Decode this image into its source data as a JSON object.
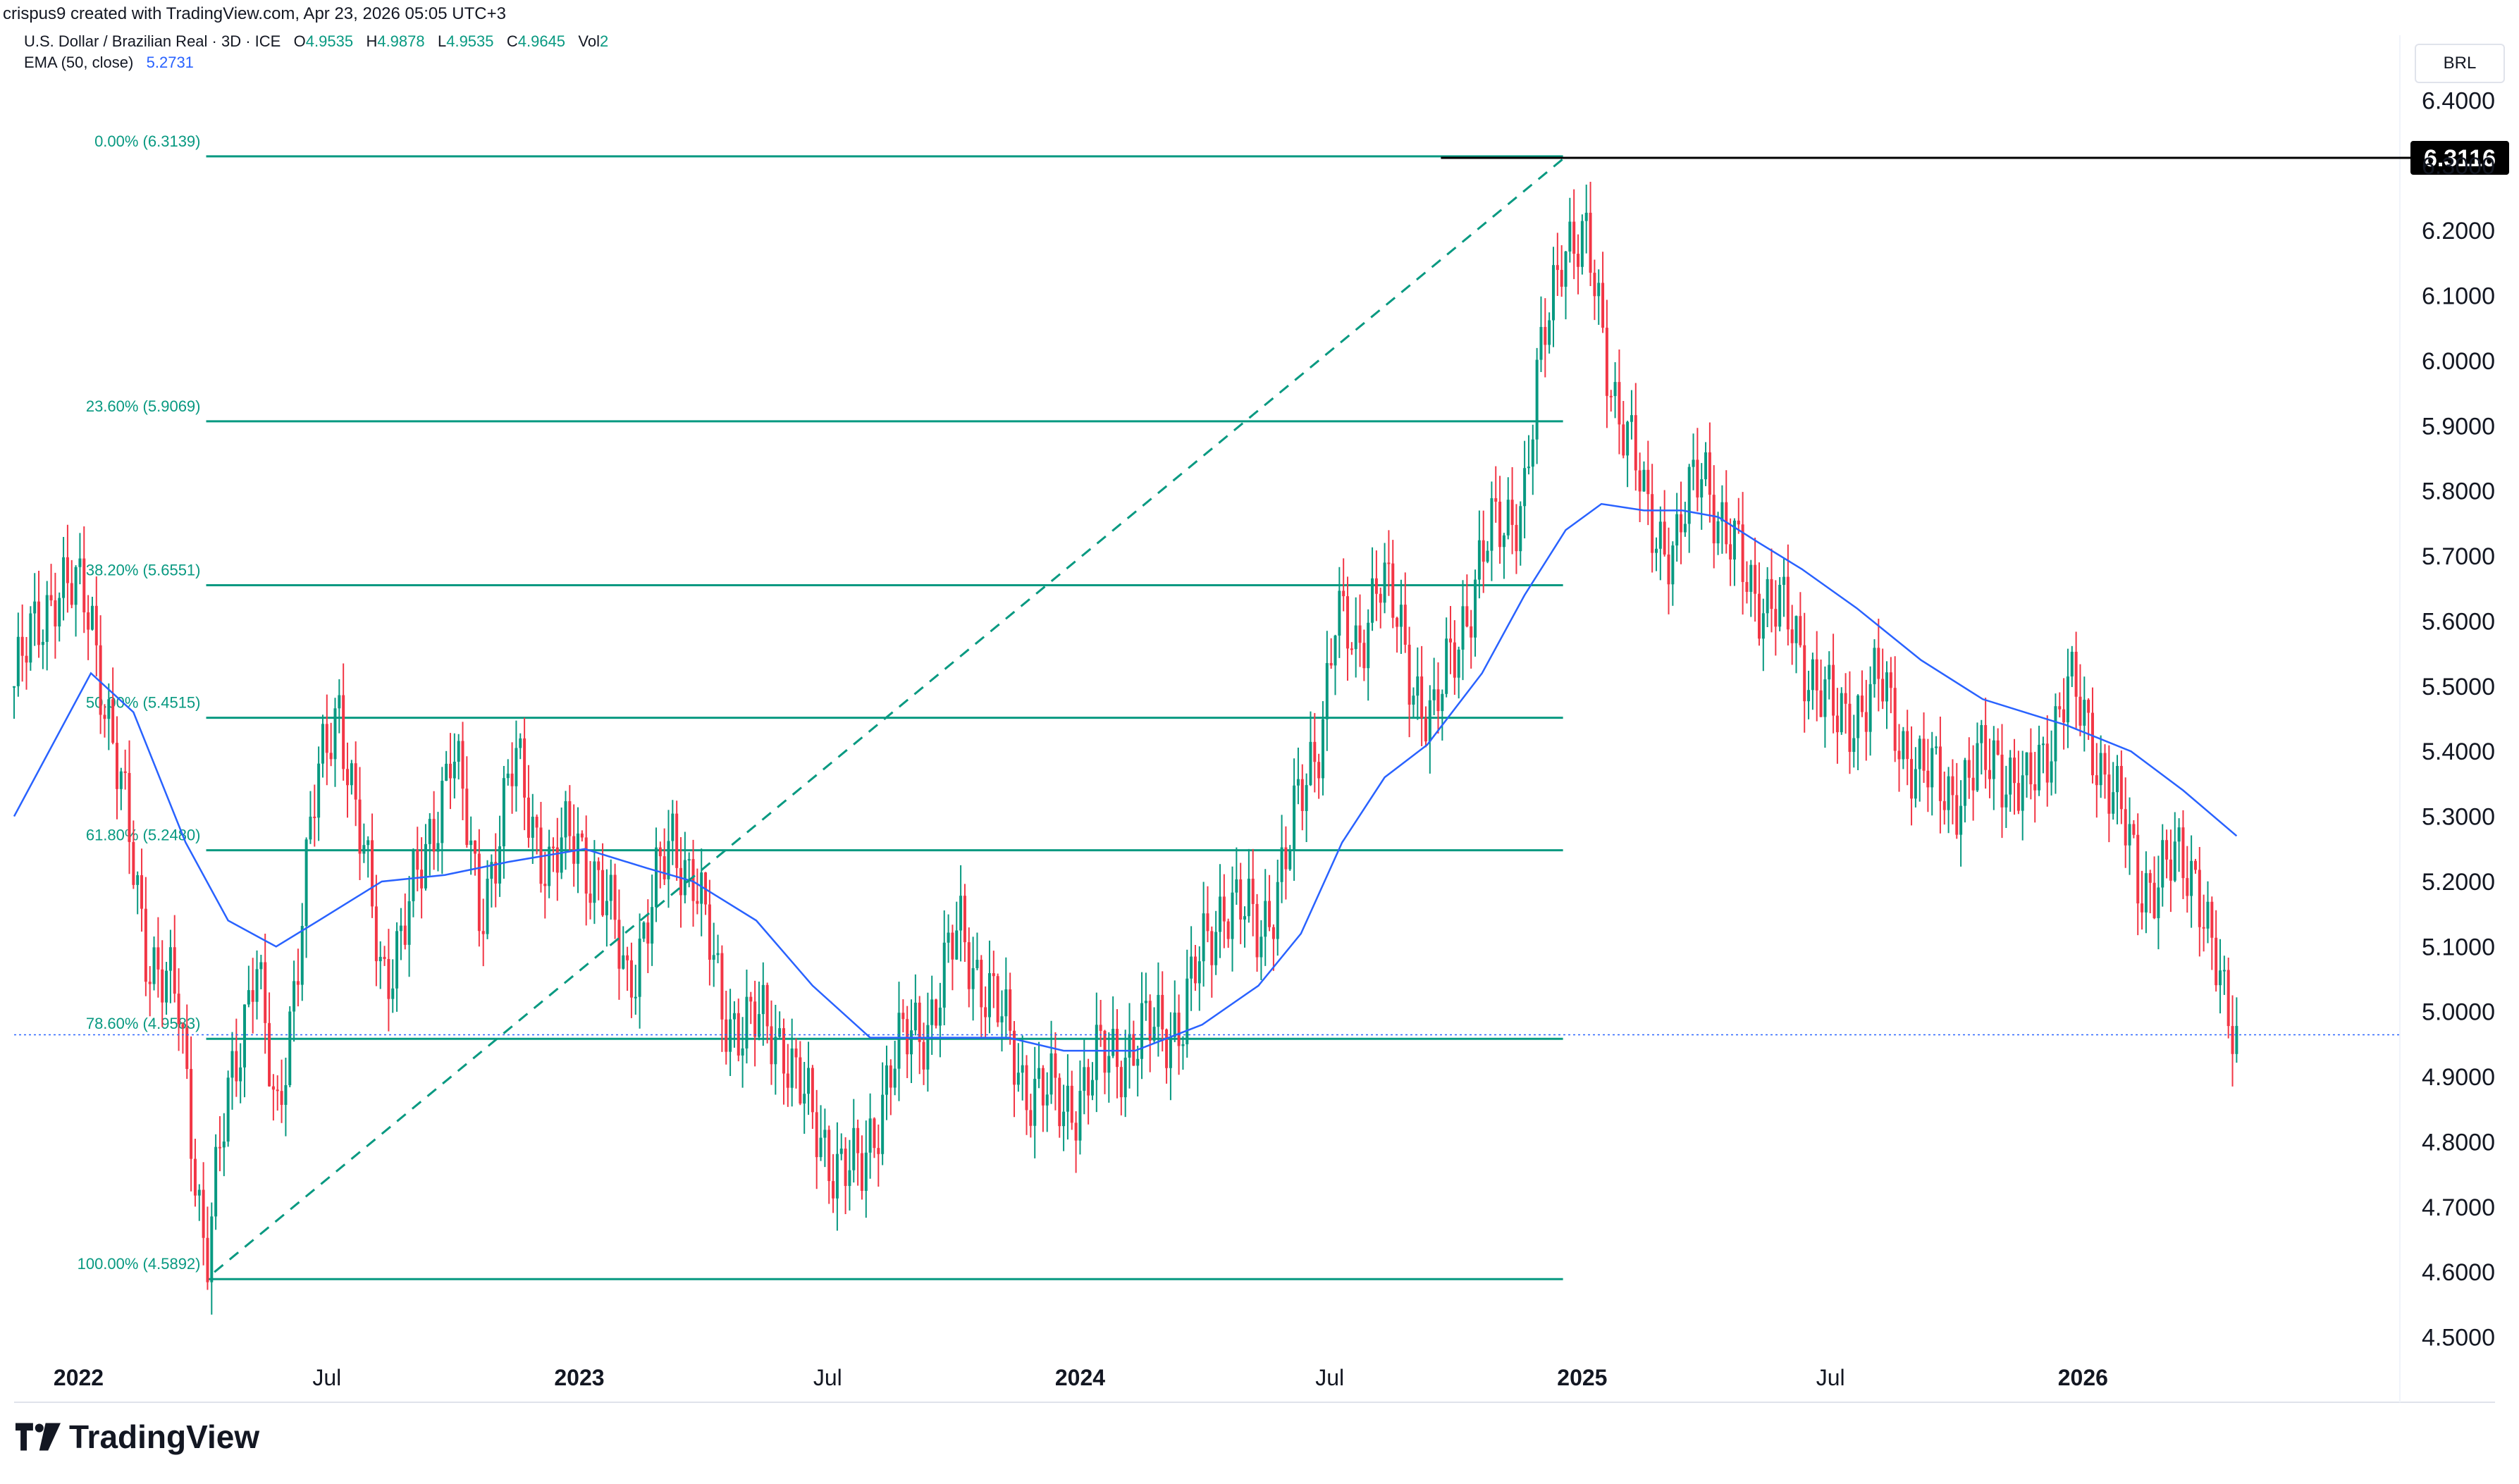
{
  "credit": "crispus9 created with TradingView.com, Apr 23, 2026 05:05 UTC+3",
  "legend": {
    "symbol": "U.S. Dollar / Brazilian Real · 3D · ICE",
    "o_key": "O",
    "o": "4.9535",
    "h_key": "H",
    "h": "4.9878",
    "l_key": "L",
    "l": "4.9535",
    "c_key": "C",
    "c": "4.9645",
    "vol": "Vol",
    "vol_value": "2",
    "ema_label": "EMA (50, close)",
    "ema_value": "5.2731"
  },
  "currency": "BRL",
  "brand": "TradingView",
  "colors": {
    "up": "#089981",
    "down": "#f23645",
    "ema": "#2962ff",
    "fib": "#089981",
    "last_label_bg": "#000000"
  },
  "chart_data": {
    "type": "candlestick",
    "y_axis": {
      "min": 4.4,
      "max": 6.5,
      "ticks": [
        "6.4000",
        "6.3000",
        "6.2000",
        "6.1000",
        "6.0000",
        "5.9000",
        "5.8000",
        "5.7000",
        "5.6000",
        "5.5000",
        "5.4000",
        "5.3000",
        "5.2000",
        "5.1000",
        "5.0000",
        "4.9000",
        "4.8000",
        "4.7000",
        "4.6000",
        "4.5000"
      ]
    },
    "x_axis": {
      "labels": [
        {
          "text": "2022",
          "bold": true,
          "date": "2022-01-01"
        },
        {
          "text": "Jul",
          "bold": false,
          "date": "2022-07-01"
        },
        {
          "text": "2023",
          "bold": true,
          "date": "2023-01-01"
        },
        {
          "text": "Jul",
          "bold": false,
          "date": "2023-07-01"
        },
        {
          "text": "2024",
          "bold": true,
          "date": "2024-01-01"
        },
        {
          "text": "Jul",
          "bold": false,
          "date": "2024-07-01"
        },
        {
          "text": "2025",
          "bold": true,
          "date": "2025-01-01"
        },
        {
          "text": "Jul",
          "bold": false,
          "date": "2025-07-01"
        },
        {
          "text": "2026",
          "bold": true,
          "date": "2026-01-01"
        }
      ],
      "start": "2021-11-15",
      "end": "2026-08-20"
    },
    "last_price": {
      "value": 4.9645,
      "label": ""
    },
    "high_marker": {
      "value": 6.3116,
      "label": "6.3116"
    },
    "fibonacci": {
      "start_date": "2022-04-04",
      "end_date": "2024-12-18",
      "levels": [
        {
          "label": "0.00% (6.3139)",
          "value": 6.3139
        },
        {
          "label": "23.60% (5.9069)",
          "value": 5.9069
        },
        {
          "label": "38.20% (5.6551)",
          "value": 5.6551
        },
        {
          "label": "50.00% (5.4515)",
          "value": 5.4515
        },
        {
          "label": "61.80% (5.2480)",
          "value": 5.248
        },
        {
          "label": "78.60% (4.9583)",
          "value": 4.9583
        },
        {
          "label": "100.00% (4.5892)",
          "value": 4.5892
        }
      ],
      "trend_from": {
        "date": "2022-04-10",
        "value": 4.6
      },
      "trend_to": {
        "date": "2024-12-18",
        "value": 6.31
      }
    },
    "price_path": [
      [
        "2021-11-15",
        5.5
      ],
      [
        "2021-12-15",
        5.66
      ],
      [
        "2022-01-10",
        5.62
      ],
      [
        "2022-01-28",
        5.38
      ],
      [
        "2022-02-20",
        5.1
      ],
      [
        "2022-03-15",
        5.0
      ],
      [
        "2022-04-04",
        4.62
      ],
      [
        "2022-04-20",
        4.86
      ],
      [
        "2022-05-10",
        5.1
      ],
      [
        "2022-05-25",
        4.8
      ],
      [
        "2022-06-20",
        5.3
      ],
      [
        "2022-07-10",
        5.48
      ],
      [
        "2022-08-10",
        5.05
      ],
      [
        "2022-09-10",
        5.22
      ],
      [
        "2022-09-30",
        5.42
      ],
      [
        "2022-10-20",
        5.15
      ],
      [
        "2022-11-15",
        5.38
      ],
      [
        "2022-12-10",
        5.22
      ],
      [
        "2022-12-30",
        5.27
      ],
      [
        "2023-01-15",
        5.2
      ],
      [
        "2023-02-05",
        5.05
      ],
      [
        "2023-03-10",
        5.26
      ],
      [
        "2023-03-25",
        5.22
      ],
      [
        "2023-04-15",
        5.0
      ],
      [
        "2023-05-05",
        4.98
      ],
      [
        "2023-05-30",
        4.96
      ],
      [
        "2023-06-20",
        4.82
      ],
      [
        "2023-07-05",
        4.78
      ],
      [
        "2023-07-25",
        4.74
      ],
      [
        "2023-08-15",
        4.92
      ],
      [
        "2023-09-10",
        4.98
      ],
      [
        "2023-10-05",
        5.12
      ],
      [
        "2023-10-25",
        5.04
      ],
      [
        "2023-11-20",
        4.9
      ],
      [
        "2023-12-20",
        4.85
      ],
      [
        "2024-01-15",
        4.92
      ],
      [
        "2024-02-15",
        4.96
      ],
      [
        "2024-03-15",
        4.99
      ],
      [
        "2024-04-15",
        5.18
      ],
      [
        "2024-05-10",
        5.12
      ],
      [
        "2024-05-31",
        5.24
      ],
      [
        "2024-06-25",
        5.45
      ],
      [
        "2024-07-05",
        5.6
      ],
      [
        "2024-07-20",
        5.55
      ],
      [
        "2024-08-05",
        5.68
      ],
      [
        "2024-08-30",
        5.52
      ],
      [
        "2024-09-15",
        5.44
      ],
      [
        "2024-10-05",
        5.6
      ],
      [
        "2024-10-25",
        5.72
      ],
      [
        "2024-11-20",
        5.8
      ],
      [
        "2024-12-05",
        6.04
      ],
      [
        "2024-12-18",
        6.2
      ],
      [
        "2025-01-05",
        6.16
      ],
      [
        "2025-01-25",
        5.95
      ],
      [
        "2025-02-15",
        5.78
      ],
      [
        "2025-03-10",
        5.7
      ],
      [
        "2025-03-30",
        5.86
      ],
      [
        "2025-04-15",
        5.72
      ],
      [
        "2025-05-05",
        5.66
      ],
      [
        "2025-06-05",
        5.58
      ],
      [
        "2025-07-05",
        5.44
      ],
      [
        "2025-08-05",
        5.5
      ],
      [
        "2025-09-05",
        5.36
      ],
      [
        "2025-10-05",
        5.34
      ],
      [
        "2025-10-30",
        5.4
      ],
      [
        "2025-11-20",
        5.32
      ],
      [
        "2025-12-20",
        5.5
      ],
      [
        "2026-01-20",
        5.36
      ],
      [
        "2026-02-10",
        5.2
      ],
      [
        "2026-03-10",
        5.22
      ],
      [
        "2026-03-25",
        5.22
      ],
      [
        "2026-04-05",
        5.1
      ],
      [
        "2026-04-15",
        4.98
      ],
      [
        "2026-04-23",
        4.96
      ]
    ],
    "ema_path": [
      [
        "2021-11-15",
        5.3
      ],
      [
        "2022-01-10",
        5.52
      ],
      [
        "2022-02-10",
        5.46
      ],
      [
        "2022-03-20",
        5.26
      ],
      [
        "2022-04-20",
        5.14
      ],
      [
        "2022-05-25",
        5.1
      ],
      [
        "2022-06-25",
        5.14
      ],
      [
        "2022-08-10",
        5.2
      ],
      [
        "2022-09-25",
        5.21
      ],
      [
        "2022-11-10",
        5.23
      ],
      [
        "2023-01-05",
        5.25
      ],
      [
        "2023-02-20",
        5.22
      ],
      [
        "2023-03-25",
        5.2
      ],
      [
        "2023-05-10",
        5.14
      ],
      [
        "2023-06-20",
        5.04
      ],
      [
        "2023-08-01",
        4.96
      ],
      [
        "2023-09-20",
        4.96
      ],
      [
        "2023-11-10",
        4.96
      ],
      [
        "2023-12-20",
        4.94
      ],
      [
        "2024-02-10",
        4.94
      ],
      [
        "2024-03-30",
        4.98
      ],
      [
        "2024-05-10",
        5.04
      ],
      [
        "2024-06-10",
        5.12
      ],
      [
        "2024-07-10",
        5.26
      ],
      [
        "2024-08-10",
        5.36
      ],
      [
        "2024-09-10",
        5.41
      ],
      [
        "2024-10-20",
        5.52
      ],
      [
        "2024-11-20",
        5.64
      ],
      [
        "2024-12-20",
        5.74
      ],
      [
        "2025-01-15",
        5.78
      ],
      [
        "2025-02-15",
        5.77
      ],
      [
        "2025-03-15",
        5.77
      ],
      [
        "2025-04-10",
        5.76
      ],
      [
        "2025-05-10",
        5.72
      ],
      [
        "2025-06-10",
        5.68
      ],
      [
        "2025-07-20",
        5.62
      ],
      [
        "2025-09-05",
        5.54
      ],
      [
        "2025-10-20",
        5.48
      ],
      [
        "2025-12-20",
        5.44
      ],
      [
        "2026-02-05",
        5.4
      ],
      [
        "2026-03-15",
        5.34
      ],
      [
        "2026-04-23",
        5.27
      ]
    ]
  }
}
